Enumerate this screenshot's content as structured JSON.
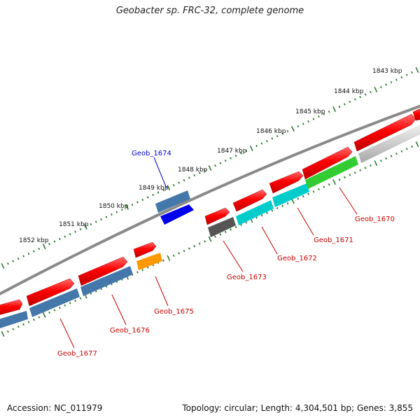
{
  "title": "Geobacter sp. FRC-32, complete genome",
  "footer": {
    "accession": "Accession: NC_011979",
    "summary": "Topology: circular; Length: 4,304,501 bp; Genes: 3,855"
  },
  "colors": {
    "backbone": "#8a8a8a",
    "tick": "#2e7d32",
    "label_red": "#cc0000",
    "label_blue": "#0000cc"
  },
  "scale": {
    "unit": "kbp",
    "labels": [
      "1843 kbp",
      "1844 kbp",
      "1845 kbp",
      "1846 kbp",
      "1847 kbp",
      "1848 kbp",
      "1849 kbp",
      "1850 kbp",
      "1851 kbp",
      "1852 kbp"
    ]
  },
  "genes": [
    {
      "id": "Geob_1670",
      "label": "Geob_1670",
      "strand": "-",
      "color": "#33cc33",
      "labeled": true
    },
    {
      "id": "Geob_1671",
      "label": "Geob_1671",
      "strand": "-",
      "color": "#00cccc",
      "labeled": true
    },
    {
      "id": "Geob_1672",
      "label": "Geob_1672",
      "strand": "-",
      "color": "#00cccc",
      "labeled": true
    },
    {
      "id": "Geob_1673",
      "label": "Geob_1673",
      "strand": "-",
      "color": "#555555",
      "labeled": true
    },
    {
      "id": "Geob_1674",
      "label": "Geob_1674",
      "strand": "+",
      "color": "#0000ee",
      "labeled": true
    },
    {
      "id": "Geob_1675",
      "label": "Geob_1675",
      "strand": "-",
      "color": "#ff9900",
      "labeled": true
    },
    {
      "id": "Geob_1676",
      "label": "Geob_1676",
      "strand": "-",
      "color": "#4477aa",
      "labeled": true
    },
    {
      "id": "Geob_1677",
      "label": "Geob_1677",
      "strand": "-",
      "color": "#4477aa",
      "labeled": true
    }
  ]
}
